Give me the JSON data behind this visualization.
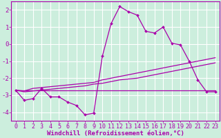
{
  "xlabel": "Windchill (Refroidissement éolien,°C)",
  "background_color": "#cceedd",
  "grid_color": "#aaddcc",
  "line_color": "#aa00aa",
  "x_values": [
    0,
    1,
    2,
    3,
    4,
    5,
    6,
    7,
    8,
    9,
    10,
    11,
    12,
    13,
    14,
    15,
    16,
    17,
    18,
    19,
    20,
    21,
    22,
    23
  ],
  "main_y": [
    -2.7,
    -3.3,
    -3.2,
    -2.6,
    -3.1,
    -3.1,
    -3.4,
    -3.6,
    -4.15,
    -4.05,
    -0.7,
    1.2,
    2.2,
    1.9,
    1.7,
    0.75,
    0.65,
    1.0,
    0.05,
    -0.05,
    -1.0,
    -2.1,
    -2.8,
    -2.8
  ],
  "line2_y": [
    -2.7,
    -2.75,
    -2.6,
    -2.55,
    -2.5,
    -2.45,
    -2.4,
    -2.35,
    -2.3,
    -2.25,
    -2.1,
    -2.0,
    -1.9,
    -1.8,
    -1.7,
    -1.6,
    -1.5,
    -1.4,
    -1.3,
    -1.2,
    -1.1,
    -1.0,
    -0.9,
    -0.8
  ],
  "line3_y": [
    -2.7,
    -2.8,
    -2.75,
    -2.7,
    -2.65,
    -2.6,
    -2.55,
    -2.5,
    -2.45,
    -2.35,
    -2.3,
    -2.2,
    -2.1,
    -2.05,
    -2.0,
    -1.9,
    -1.8,
    -1.7,
    -1.6,
    -1.5,
    -1.4,
    -1.3,
    -1.2,
    -1.1
  ],
  "line4_y": [
    -2.7,
    -2.7,
    -2.7,
    -2.7,
    -2.7,
    -2.7,
    -2.7,
    -2.7,
    -2.7,
    -2.7,
    -2.7,
    -2.7,
    -2.7,
    -2.7,
    -2.7,
    -2.7,
    -2.7,
    -2.7,
    -2.7,
    -2.7,
    -2.7,
    -2.7,
    -2.7,
    -2.7
  ],
  "ylim": [
    -4.5,
    2.5
  ],
  "yticks": [
    -4,
    -3,
    -2,
    -1,
    0,
    1,
    2
  ],
  "xlim": [
    -0.5,
    23.5
  ],
  "xticks": [
    0,
    1,
    2,
    3,
    4,
    5,
    6,
    7,
    8,
    9,
    10,
    11,
    12,
    13,
    14,
    15,
    16,
    17,
    18,
    19,
    20,
    21,
    22,
    23
  ],
  "tick_fontsize": 6,
  "xlabel_fontsize": 6.5
}
